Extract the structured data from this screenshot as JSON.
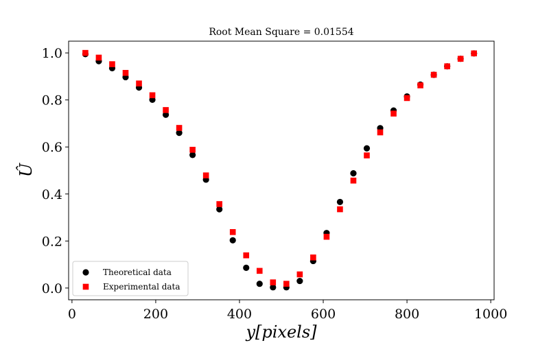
{
  "chart_data": {
    "type": "scatter",
    "title": "Root Mean Square = 0.01554",
    "xlabel": "y[pixels]",
    "ylabel": "Û",
    "xlim": [
      -8,
      1008
    ],
    "ylim": [
      -0.05,
      1.05
    ],
    "xticks": [
      0,
      200,
      400,
      600,
      800,
      1000
    ],
    "yticks": [
      0.0,
      0.2,
      0.4,
      0.6,
      0.8,
      1.0
    ],
    "xtick_labels": [
      "0",
      "200",
      "400",
      "600",
      "800",
      "1000"
    ],
    "ytick_labels": [
      "0.0",
      "0.2",
      "0.4",
      "0.6",
      "0.8",
      "1.0"
    ],
    "grid": false,
    "legend_position": "lower-left",
    "series": [
      {
        "name": "Theoretical data",
        "marker": "circle",
        "color": "#000000",
        "x": [
          32,
          64,
          96,
          128,
          160,
          192,
          224,
          256,
          288,
          320,
          352,
          384,
          416,
          448,
          480,
          512,
          544,
          576,
          608,
          640,
          672,
          704,
          736,
          768,
          800,
          832,
          864,
          896,
          928,
          960
        ],
        "y": [
          0.995,
          0.965,
          0.935,
          0.897,
          0.853,
          0.801,
          0.737,
          0.66,
          0.566,
          0.461,
          0.335,
          0.203,
          0.086,
          0.018,
          0.003,
          0.003,
          0.03,
          0.115,
          0.234,
          0.366,
          0.488,
          0.594,
          0.68,
          0.755,
          0.815,
          0.865,
          0.907,
          0.943,
          0.975,
          0.998
        ]
      },
      {
        "name": "Experimental data",
        "marker": "square",
        "color": "#ff0000",
        "x": [
          32,
          64,
          96,
          128,
          160,
          192,
          224,
          256,
          288,
          320,
          352,
          384,
          416,
          448,
          480,
          512,
          544,
          576,
          608,
          640,
          672,
          704,
          736,
          768,
          800,
          832,
          864,
          896,
          928,
          960
        ],
        "y": [
          1.0,
          0.98,
          0.952,
          0.915,
          0.87,
          0.82,
          0.757,
          0.681,
          0.588,
          0.479,
          0.357,
          0.238,
          0.139,
          0.073,
          0.024,
          0.018,
          0.058,
          0.13,
          0.218,
          0.335,
          0.457,
          0.564,
          0.662,
          0.742,
          0.808,
          0.862,
          0.907,
          0.943,
          0.975,
          0.998
        ]
      }
    ]
  }
}
